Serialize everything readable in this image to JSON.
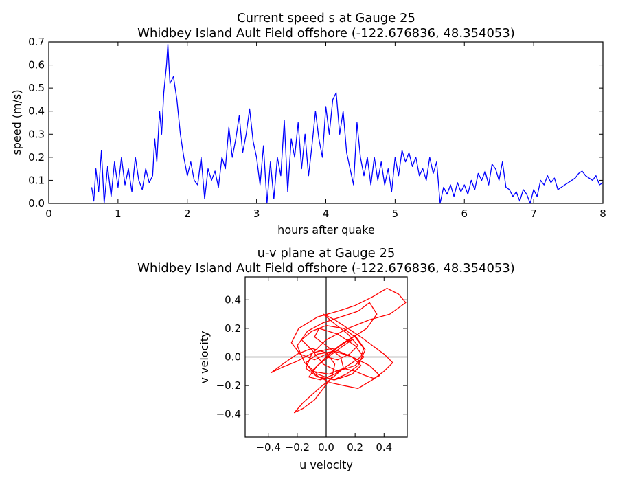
{
  "chart_data": [
    {
      "type": "line",
      "title": "Current speed s at Gauge 25",
      "subtitle": "Whidbey Island Ault Field offshore  (-122.676836, 48.354053)",
      "xlabel": "hours after quake",
      "ylabel": "speed (m/s)",
      "xlim": [
        0,
        8
      ],
      "ylim": [
        0,
        0.7
      ],
      "xticks": [
        0,
        1,
        2,
        3,
        4,
        5,
        6,
        7,
        8
      ],
      "xtick_labels": [
        "0",
        "1",
        "2",
        "3",
        "4",
        "5",
        "6",
        "7",
        "8"
      ],
      "yticks": [
        0,
        0.1,
        0.2,
        0.3,
        0.4,
        0.5,
        0.6,
        0.7
      ],
      "ytick_labels": [
        "0.0",
        "0.1",
        "0.2",
        "0.3",
        "0.4",
        "0.5",
        "0.6",
        "0.7"
      ],
      "grid": false,
      "color": "#0000ff",
      "series": [
        {
          "x": [
            0.62,
            0.65,
            0.68,
            0.72,
            0.76,
            0.8,
            0.85,
            0.9,
            0.95,
            1.0,
            1.05,
            1.1,
            1.15,
            1.2,
            1.25,
            1.3,
            1.35,
            1.4,
            1.45,
            1.5,
            1.53,
            1.56,
            1.6,
            1.63,
            1.66,
            1.7,
            1.72,
            1.75,
            1.8,
            1.85,
            1.9,
            1.95,
            2.0,
            2.05,
            2.1,
            2.15,
            2.2,
            2.25,
            2.3,
            2.35,
            2.4,
            2.45,
            2.5,
            2.55,
            2.6,
            2.65,
            2.7,
            2.75,
            2.8,
            2.85,
            2.9,
            2.95,
            3.0,
            3.05,
            3.1,
            3.15,
            3.2,
            3.25,
            3.3,
            3.35,
            3.4,
            3.45,
            3.5,
            3.55,
            3.6,
            3.65,
            3.7,
            3.75,
            3.8,
            3.85,
            3.9,
            3.95,
            4.0,
            4.05,
            4.1,
            4.15,
            4.2,
            4.25,
            4.3,
            4.35,
            4.4,
            4.45,
            4.5,
            4.55,
            4.6,
            4.65,
            4.7,
            4.75,
            4.8,
            4.85,
            4.9,
            4.95,
            5.0,
            5.05,
            5.1,
            5.15,
            5.2,
            5.25,
            5.3,
            5.35,
            5.4,
            5.45,
            5.5,
            5.55,
            5.6,
            5.65,
            5.7,
            5.75,
            5.8,
            5.85,
            5.9,
            5.95,
            6.0,
            6.05,
            6.1,
            6.15,
            6.2,
            6.25,
            6.3,
            6.35,
            6.4,
            6.45,
            6.5,
            6.55,
            6.6,
            6.65,
            6.7,
            6.75,
            6.8,
            6.85,
            6.9,
            6.95,
            7.0,
            7.05,
            7.1,
            7.15,
            7.2,
            7.25,
            7.3,
            7.35,
            7.4,
            7.45,
            7.5,
            7.55,
            7.6,
            7.65,
            7.7,
            7.75,
            7.8,
            7.85,
            7.9,
            7.95,
            8.0
          ],
          "y": [
            0.07,
            0.01,
            0.15,
            0.05,
            0.23,
            0.0,
            0.16,
            0.03,
            0.18,
            0.07,
            0.2,
            0.08,
            0.15,
            0.05,
            0.2,
            0.1,
            0.06,
            0.15,
            0.09,
            0.12,
            0.28,
            0.18,
            0.4,
            0.3,
            0.48,
            0.6,
            0.69,
            0.52,
            0.55,
            0.45,
            0.3,
            0.2,
            0.12,
            0.18,
            0.1,
            0.08,
            0.2,
            0.02,
            0.15,
            0.1,
            0.14,
            0.07,
            0.2,
            0.15,
            0.33,
            0.2,
            0.28,
            0.38,
            0.22,
            0.3,
            0.41,
            0.27,
            0.2,
            0.08,
            0.25,
            0.0,
            0.18,
            0.02,
            0.2,
            0.12,
            0.36,
            0.05,
            0.28,
            0.2,
            0.35,
            0.15,
            0.3,
            0.12,
            0.25,
            0.4,
            0.28,
            0.2,
            0.42,
            0.3,
            0.45,
            0.48,
            0.3,
            0.4,
            0.22,
            0.15,
            0.08,
            0.35,
            0.2,
            0.12,
            0.2,
            0.08,
            0.2,
            0.1,
            0.18,
            0.08,
            0.15,
            0.05,
            0.2,
            0.12,
            0.23,
            0.18,
            0.22,
            0.16,
            0.2,
            0.12,
            0.15,
            0.1,
            0.2,
            0.13,
            0.18,
            0.0,
            0.07,
            0.04,
            0.08,
            0.03,
            0.09,
            0.05,
            0.08,
            0.04,
            0.1,
            0.06,
            0.13,
            0.1,
            0.14,
            0.08,
            0.17,
            0.15,
            0.1,
            0.18,
            0.07,
            0.06,
            0.03,
            0.05,
            0.01,
            0.06,
            0.04,
            0.0,
            0.06,
            0.03,
            0.1,
            0.08,
            0.12,
            0.09,
            0.11,
            0.06,
            0.07,
            0.08,
            0.09,
            0.1,
            0.11,
            0.13,
            0.14,
            0.12,
            0.11,
            0.1,
            0.12,
            0.08,
            0.09
          ]
        }
      ]
    },
    {
      "type": "line",
      "title": "u-v plane at Gauge 25",
      "subtitle": "Whidbey Island Ault Field offshore  (-122.676836, 48.354053)",
      "xlabel": "u velocity",
      "ylabel": "v velocity",
      "xlim": [
        -0.56,
        0.56
      ],
      "ylim": [
        -0.56,
        0.56
      ],
      "xticks": [
        -0.4,
        -0.2,
        0,
        0.2,
        0.4
      ],
      "xtick_labels": [
        "−0.4",
        "−0.2",
        "0.0",
        "0.2",
        "0.4"
      ],
      "yticks": [
        -0.4,
        -0.2,
        0,
        0.2,
        0.4
      ],
      "ytick_labels": [
        "−0.4",
        "−0.2",
        "0.0",
        "0.2",
        "0.4"
      ],
      "grid": false,
      "zero_lines": true,
      "color": "#ff0000",
      "series": [
        {
          "u": [
            0.0,
            0.05,
            0.12,
            0.2,
            0.27,
            0.22,
            0.14,
            0.05,
            -0.06,
            -0.15,
            -0.2,
            -0.13,
            -0.02,
            0.1,
            0.22,
            0.3,
            0.35,
            0.28,
            0.16,
            0.04,
            -0.08,
            -0.18,
            -0.24,
            -0.19,
            -0.06,
            0.08,
            0.2,
            0.32,
            0.42,
            0.5,
            0.55,
            0.44,
            0.3,
            0.15,
            0.0,
            -0.1,
            -0.14,
            -0.06,
            0.06,
            0.18,
            0.24,
            0.18,
            0.06,
            -0.06,
            -0.14,
            -0.1,
            0.02,
            0.12,
            0.2,
            0.27,
            0.33,
            0.37,
            0.3,
            0.18,
            0.04,
            -0.09,
            -0.2,
            -0.3,
            -0.36,
            -0.38,
            -0.3,
            -0.2,
            -0.1,
            0.0,
            0.06,
            0.04,
            -0.02,
            -0.08,
            -0.16,
            -0.22,
            -0.16,
            -0.05,
            0.05,
            0.12,
            0.1,
            0.0,
            -0.08,
            -0.05,
            0.08,
            0.2,
            0.26,
            0.2,
            0.08,
            -0.02,
            -0.1,
            -0.17,
            -0.1,
            0.0,
            0.12,
            0.2,
            0.26,
            0.24,
            0.15,
            0.06,
            -0.04,
            -0.12,
            -0.06,
            0.04,
            0.12,
            0.18,
            0.12,
            0.04,
            -0.04,
            -0.1,
            -0.05,
            0.03,
            0.12,
            0.22,
            0.32,
            0.4,
            0.46,
            0.4,
            0.32,
            0.24,
            0.15,
            0.06,
            -0.02,
            0.05,
            0.15,
            0.22,
            0.16,
            0.08,
            0.0
          ],
          "v": [
            0.0,
            0.04,
            0.1,
            0.15,
            0.05,
            -0.06,
            -0.12,
            -0.16,
            -0.12,
            -0.04,
            0.08,
            0.18,
            0.24,
            0.28,
            0.32,
            0.38,
            0.3,
            0.2,
            0.12,
            0.04,
            -0.02,
            0.02,
            0.1,
            0.2,
            0.28,
            0.32,
            0.36,
            0.42,
            0.48,
            0.44,
            0.38,
            0.3,
            0.26,
            0.2,
            0.12,
            0.02,
            -0.08,
            -0.14,
            -0.16,
            -0.12,
            -0.06,
            0.0,
            0.04,
            0.02,
            -0.04,
            -0.1,
            -0.12,
            -0.08,
            -0.1,
            -0.13,
            -0.15,
            -0.13,
            -0.06,
            0.0,
            0.06,
            0.03,
            -0.03,
            -0.07,
            -0.1,
            -0.11,
            -0.05,
            0.02,
            0.06,
            0.03,
            -0.05,
            -0.14,
            -0.22,
            -0.3,
            -0.36,
            -0.39,
            -0.32,
            -0.22,
            -0.14,
            -0.08,
            0.0,
            0.08,
            0.14,
            0.2,
            0.16,
            0.08,
            0.0,
            -0.06,
            -0.1,
            -0.05,
            0.05,
            0.12,
            0.18,
            0.22,
            0.2,
            0.14,
            0.06,
            0.0,
            -0.06,
            -0.12,
            -0.16,
            -0.14,
            -0.06,
            0.02,
            0.08,
            0.12,
            0.1,
            0.04,
            -0.04,
            -0.1,
            -0.14,
            -0.18,
            -0.2,
            -0.22,
            -0.16,
            -0.1,
            -0.04,
            0.02,
            0.08,
            0.14,
            0.2,
            0.26,
            0.3,
            0.24,
            0.16,
            0.08,
            0.02,
            -0.02,
            0.0
          ]
        }
      ]
    }
  ]
}
